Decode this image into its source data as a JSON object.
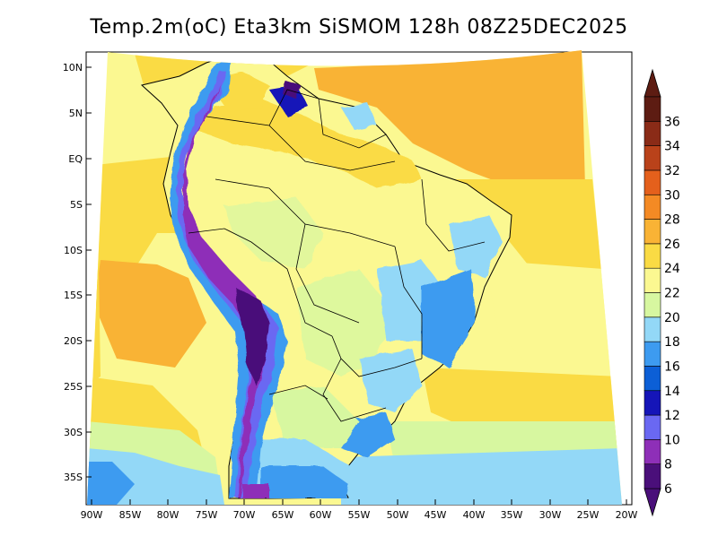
{
  "title": "Temp.2m(oC) Eta3km SiSMOM 128h 08Z25DEC2025",
  "latitude_labels": [
    "10N",
    "5N",
    "EQ",
    "5S",
    "10S",
    "15S",
    "20S",
    "25S",
    "30S",
    "35S"
  ],
  "longitude_labels": [
    "90W",
    "85W",
    "80W",
    "75W",
    "70W",
    "65W",
    "60W",
    "55W",
    "50W",
    "45W",
    "40W",
    "35W",
    "30W",
    "25W",
    "20W"
  ],
  "colorbar": {
    "labels": [
      "6",
      "8",
      "10",
      "12",
      "14",
      "16",
      "18",
      "20",
      "22",
      "24",
      "26",
      "28",
      "30",
      "32",
      "34",
      "36"
    ],
    "colors": [
      "#4a0f7a",
      "#8e2fb8",
      "#6a68f2",
      "#1515b8",
      "#0c5fd6",
      "#3d9bf0",
      "#93d8f7",
      "#d7f7a0",
      "#fbf891",
      "#fadb44",
      "#f9b335",
      "#f48a24",
      "#e4601c",
      "#b9421a",
      "#8a2b17",
      "#5d1c12"
    ],
    "cap_low_color": "#4a0f7a",
    "cap_high_color": "#5d1c12"
  }
}
